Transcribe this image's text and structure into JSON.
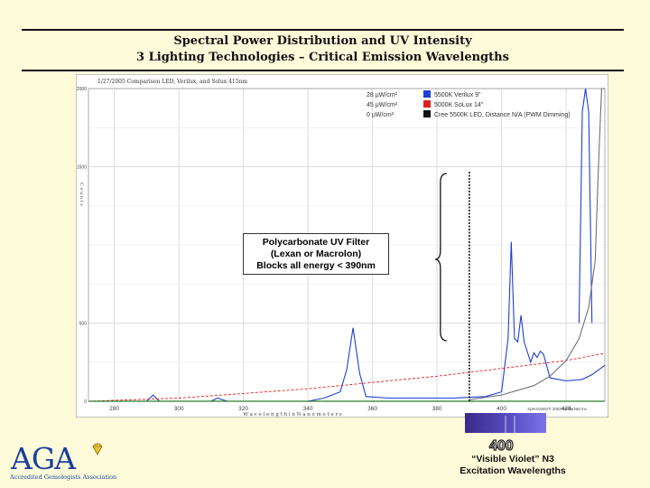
{
  "slide": {
    "title_line1": "Spectral Power Distribution and UV Intensity",
    "title_line2": "3 Lighting Technologies – Critical Emission Wavelengths",
    "callout": [
      "Polycarbonate UV Filter",
      "(Lexan or Macrolon)",
      "Blocks all energy < 390nm"
    ],
    "caption": [
      "“Visible Violet” N3",
      "Excitation Wavelengths"
    ],
    "swatch_label": "400",
    "logo": {
      "text": "AGA",
      "subtitle": "Accredited Gemologists Association"
    }
  },
  "chart_data": {
    "type": "line",
    "header_text": "1/27/2005   Comparison LED, Verilux, and Solux 415nm",
    "xlabel": "W a v e l e n g t h   i n   N a n o m e t e r s",
    "ylabel": "C o u n t s",
    "credit": "SpectraWiz® 2003 StellarNet Inc",
    "xlim": [
      272,
      432
    ],
    "ylim": [
      0,
      2000
    ],
    "x_ticks": [
      280,
      300,
      320,
      340,
      360,
      380,
      400,
      420
    ],
    "y_ticks": [
      0,
      500,
      1500,
      2000
    ],
    "y_tick_labels": [
      "0",
      "500",
      "1500",
      "2000"
    ],
    "grid": true,
    "legend_position": "top-right",
    "legend": [
      {
        "value": "28 µW/cm²",
        "name": "5500K Verilux 9\"",
        "color": "#1f3fd0"
      },
      {
        "value": "45 µW/cm²",
        "name": "5000K SoLux 14\"",
        "color": "#e02020"
      },
      {
        "value": "0 µW/cm²",
        "name": "Cree 5500K LED, Distance N/A (PWM Dimming)",
        "color": "#111111"
      }
    ],
    "series": [
      {
        "name": "5500K Verilux 9\"",
        "color": "#1f3fd0",
        "x": [
          272,
          285,
          290,
          292,
          294,
          300,
          305,
          310,
          312,
          315,
          320,
          330,
          340,
          345,
          350,
          352,
          354,
          356,
          358,
          365,
          370,
          380,
          385,
          395,
          400,
          402,
          403,
          404,
          405,
          406,
          407,
          409,
          410,
          411,
          412,
          413,
          415,
          420,
          425,
          428,
          430,
          432
        ],
        "y": [
          0,
          0,
          0,
          40,
          0,
          0,
          0,
          0,
          20,
          0,
          0,
          0,
          0,
          20,
          60,
          200,
          470,
          180,
          30,
          20,
          20,
          20,
          20,
          30,
          60,
          400,
          1020,
          400,
          380,
          550,
          380,
          250,
          310,
          280,
          320,
          300,
          150,
          130,
          140,
          170,
          200,
          230
        ]
      },
      {
        "name": "5000K SoLux 14\"",
        "color": "#e02020",
        "x": [
          272,
          300,
          320,
          340,
          360,
          380,
          400,
          410,
          420,
          430,
          432
        ],
        "y": [
          0,
          20,
          50,
          80,
          120,
          160,
          210,
          235,
          260,
          300,
          305
        ]
      },
      {
        "name": "blue-peaks-right",
        "color": "#1f3fd0",
        "x": [
          424,
          425,
          426,
          427,
          428
        ],
        "y": [
          500,
          1850,
          2000,
          1850,
          500
        ]
      },
      {
        "name": "gray-rising",
        "color": "#707080",
        "x": [
          390,
          400,
          410,
          415,
          420,
          424,
          427,
          429,
          430,
          431,
          432
        ],
        "y": [
          10,
          40,
          100,
          160,
          260,
          400,
          600,
          900,
          1500,
          2000,
          2000
        ]
      },
      {
        "name": "Cree 5500K LED, Distance N/A (PWM Dimming)",
        "color": "#111111",
        "x": [
          272,
          432
        ],
        "y": [
          0,
          0
        ]
      }
    ],
    "cutoff_line_x": 390
  }
}
